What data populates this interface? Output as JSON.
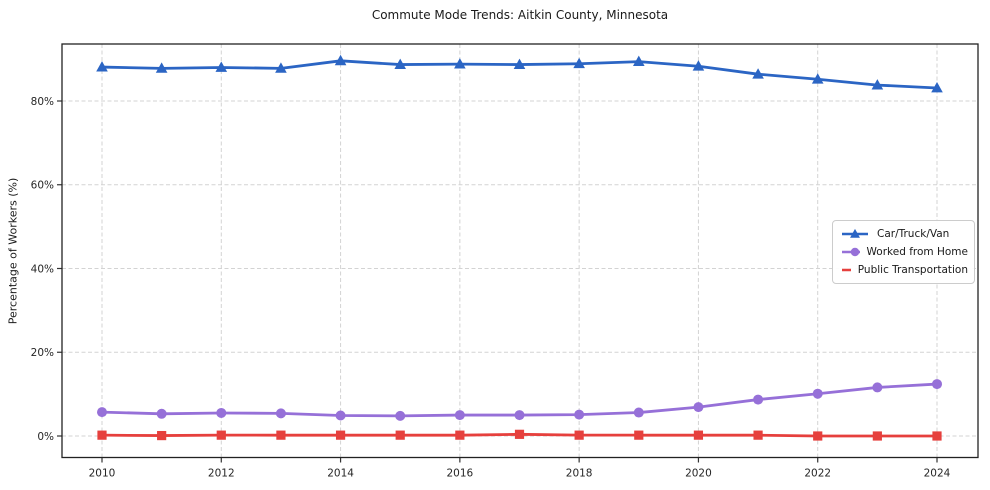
{
  "title": "Commute Mode Trends: Aitkin County, Minnesota",
  "chart_data": {
    "type": "line",
    "title": "Commute Mode Trends: Aitkin County, Minnesota",
    "xlabel": "",
    "ylabel": "Percentage of Workers (%)",
    "x": [
      2010,
      2011,
      2012,
      2013,
      2014,
      2015,
      2016,
      2017,
      2018,
      2019,
      2020,
      2021,
      2022,
      2023,
      2024
    ],
    "x_ticks": [
      2010,
      2012,
      2014,
      2016,
      2018,
      2020,
      2022,
      2024
    ],
    "x_tick_labels": [
      "2010",
      "2012",
      "2014",
      "2016",
      "2018",
      "2020",
      "2022",
      "2024"
    ],
    "y_ticks": [
      0,
      20,
      40,
      60,
      80
    ],
    "y_tick_labels": [
      "0%",
      "20%",
      "40%",
      "60%",
      "80%"
    ],
    "ylim": [
      -5.1,
      93.6
    ],
    "xlim": [
      2009.3,
      2024.7
    ],
    "grid": true,
    "legend_position": "center right",
    "series": [
      {
        "name": "Car/Truck/Van",
        "color": "#2B65C4",
        "marker": "triangle",
        "values": [
          88.1,
          87.8,
          88.0,
          87.8,
          89.6,
          88.7,
          88.8,
          88.7,
          88.9,
          89.4,
          88.3,
          86.4,
          85.2,
          83.8,
          83.1
        ]
      },
      {
        "name": "Worked from Home",
        "color": "#9670D8",
        "marker": "circle",
        "values": [
          5.7,
          5.3,
          5.5,
          5.4,
          4.9,
          4.8,
          5.0,
          5.0,
          5.1,
          5.6,
          6.9,
          8.7,
          10.1,
          11.6,
          12.4
        ]
      },
      {
        "name": "Public Transportation",
        "color": "#E6403D",
        "marker": "square",
        "values": [
          0.2,
          0.1,
          0.2,
          0.2,
          0.2,
          0.2,
          0.2,
          0.4,
          0.2,
          0.2,
          0.2,
          0.2,
          0.0,
          0.0,
          0.0
        ]
      }
    ]
  }
}
